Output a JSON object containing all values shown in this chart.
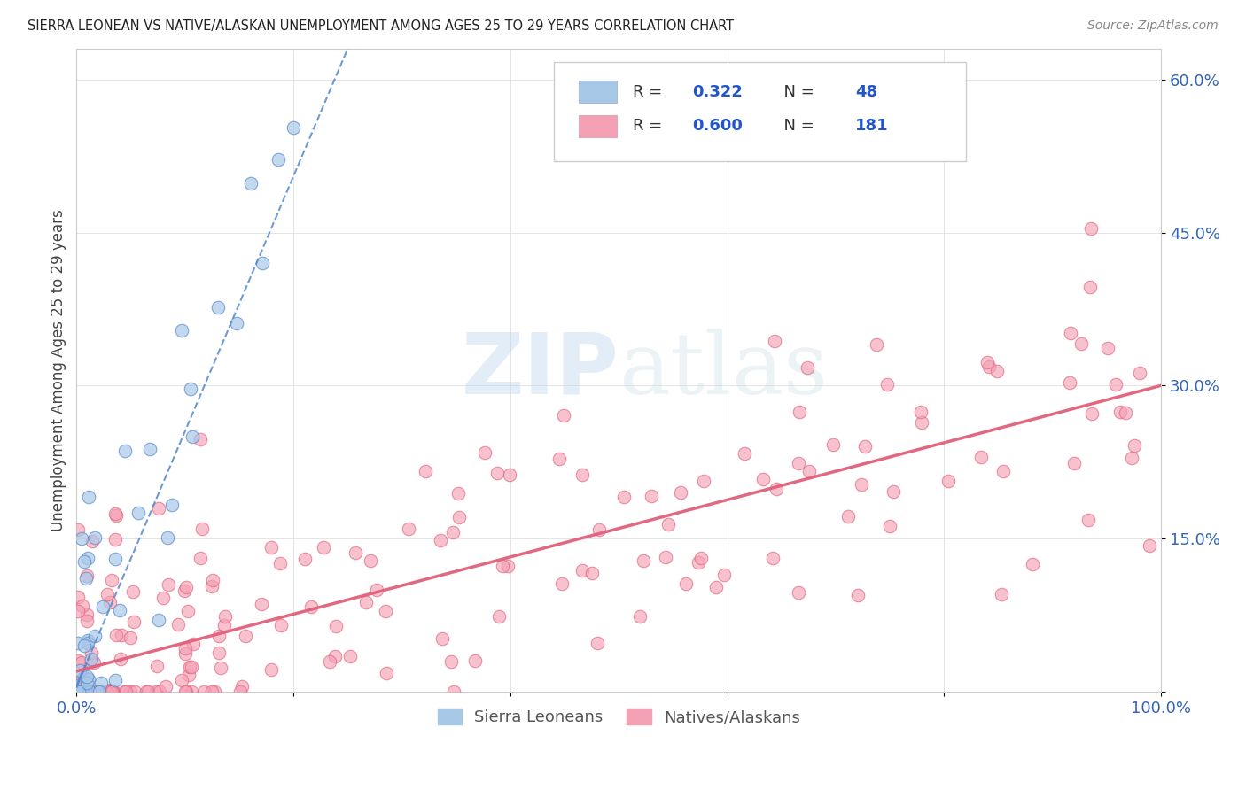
{
  "title": "SIERRA LEONEAN VS NATIVE/ALASKAN UNEMPLOYMENT AMONG AGES 25 TO 29 YEARS CORRELATION CHART",
  "source": "Source: ZipAtlas.com",
  "ylabel": "Unemployment Among Ages 25 to 29 years",
  "xlim": [
    0,
    1.0
  ],
  "ylim": [
    0.0,
    0.63
  ],
  "blue_color": "#a8c8e8",
  "pink_color": "#f4a0b5",
  "blue_line_color": "#5588cc",
  "pink_line_color": "#e0607a",
  "blue_dot_edge": "#5588cc",
  "pink_dot_edge": "#e0607a",
  "watermark_color": "#c8ddf0",
  "legend_blue_r": "R = ",
  "legend_blue_rv": "0.322",
  "legend_blue_n": "N = ",
  "legend_blue_nv": "48",
  "legend_pink_r": "R = ",
  "legend_pink_rv": "0.600",
  "legend_pink_n": "N = ",
  "legend_pink_nv": "181",
  "blue_trend_slope": 2.5,
  "blue_trend_intercept": 0.005,
  "pink_trend_slope": 0.28,
  "pink_trend_intercept": 0.02
}
